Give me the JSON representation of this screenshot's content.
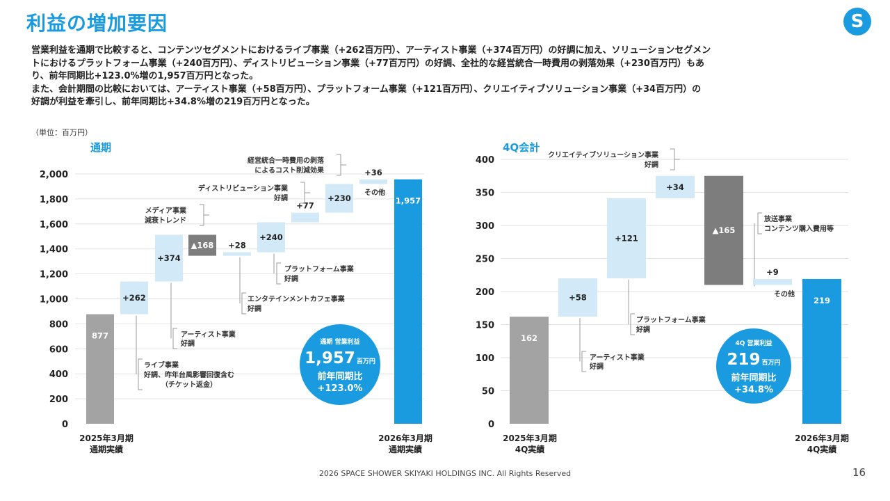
{
  "title": "利益の増加要因",
  "logo_letter": "S",
  "summary": {
    "line1": "営業利益を通期で比較すると、コンテンツセグメントにおけるライブ事業（+262百万円）、アーティスト事業（+374百万円）の好調に加え、ソリューションセグメン",
    "line2": "トにおけるプラットフォーム事業（+240百万円）、ディストリビューション事業（+77百万円）の好調、全社的な経営統合一時費用の剥落効果（+230百万円）もあ",
    "line3": "り、前年同期比+123.0%増の1,957百万円となった。",
    "line4": "また、会計期間の比較においては、アーティスト事業（+58百万円）、プラットフォーム事業（+121百万円）、クリエイティブソリューション事業（+34百万円）の",
    "line5": "好調が利益を牽引し、前年同期比+34.8%増の219百万円となった。"
  },
  "unit_label": "（単位：百万円）",
  "colors": {
    "accent": "#1a9be0",
    "start_bar": "#a3a3a3",
    "increase_bar": "#d2e9f8",
    "decrease_bar": "#7d7d7d",
    "end_bar": "#1a9be0",
    "badge": "#1a9be0",
    "grid": "#e2e2e2",
    "bracket": "#9a9a9a"
  },
  "chart_data": [
    {
      "type": "waterfall",
      "title": "通期",
      "ylim": [
        0,
        2000
      ],
      "yticks": [
        0,
        200,
        400,
        600,
        800,
        1000,
        1200,
        1400,
        1600,
        1800,
        2000
      ],
      "ytick_labels": [
        "0",
        "200",
        "400",
        "600",
        "800",
        "1,000",
        "1,200",
        "1,400",
        "1,600",
        "1,800",
        "2,000"
      ],
      "grid": true,
      "bars": [
        {
          "kind": "start",
          "value": 877,
          "label": "877",
          "xlabel": [
            "2025年3月期",
            "通期実績"
          ]
        },
        {
          "kind": "increase",
          "value": 262,
          "label": "+262",
          "note": [
            "ライブ事業",
            "好調、昨年台風影響回復含む",
            "（チケット返金）"
          ]
        },
        {
          "kind": "increase",
          "value": 374,
          "label": "+374",
          "note": [
            "アーティスト事業",
            "好調"
          ]
        },
        {
          "kind": "decrease",
          "value": -168,
          "label": "▲168",
          "note": [
            "メディア事業",
            "減衰トレンド"
          ]
        },
        {
          "kind": "increase",
          "value": 28,
          "label": "+28",
          "note": [
            "エンタテインメントカフェ事業",
            "好調"
          ]
        },
        {
          "kind": "increase",
          "value": 240,
          "label": "+240",
          "note": [
            "プラットフォーム事業",
            "好調"
          ]
        },
        {
          "kind": "increase",
          "value": 77,
          "label": "+77",
          "note": [
            "ディストリビューション事業",
            "好調"
          ]
        },
        {
          "kind": "increase",
          "value": 230,
          "label": "+230",
          "note": [
            "経営統合一時費用の剥落",
            "によるコスト削減効果"
          ]
        },
        {
          "kind": "increase",
          "value": 36,
          "label": "+36",
          "note": [
            "その他"
          ]
        },
        {
          "kind": "end",
          "value": 1957,
          "label": "1,957",
          "xlabel": [
            "2026年3月期",
            "通期実績"
          ]
        }
      ],
      "badge": {
        "title": "通期 営業利益",
        "value": "1,957",
        "unit": "百万円",
        "line3": "前年同期比",
        "line4": "+123.0%"
      }
    },
    {
      "type": "waterfall",
      "title": "4Q会計",
      "ylim": [
        0,
        400
      ],
      "yticks": [
        0,
        50,
        100,
        150,
        200,
        250,
        300,
        350,
        400
      ],
      "ytick_labels": [
        "0",
        "50",
        "100",
        "150",
        "200",
        "250",
        "300",
        "350",
        "400"
      ],
      "grid": true,
      "bars": [
        {
          "kind": "start",
          "value": 162,
          "label": "162",
          "xlabel": [
            "2025年3月期",
            "4Q実績"
          ]
        },
        {
          "kind": "increase",
          "value": 58,
          "label": "+58",
          "note": [
            "アーティスト事業",
            "好調"
          ]
        },
        {
          "kind": "increase",
          "value": 121,
          "label": "+121",
          "note": [
            "プラットフォーム事業",
            "好調"
          ]
        },
        {
          "kind": "increase",
          "value": 34,
          "label": "+34",
          "note": [
            "クリエイティブソリューション事業",
            "好調"
          ]
        },
        {
          "kind": "decrease",
          "value": -165,
          "label": "▲165",
          "note": [
            "放送事業",
            "コンテンツ購入費用等"
          ]
        },
        {
          "kind": "increase",
          "value": 9,
          "label": "+9",
          "note": [
            "その他"
          ]
        },
        {
          "kind": "end",
          "value": 219,
          "label": "219",
          "xlabel": [
            "2026年3月期",
            "4Q実績"
          ]
        }
      ],
      "badge": {
        "title": "4Q 営業利益",
        "value": "219",
        "unit": "百万円",
        "line3": "前年同期比",
        "line4": "+34.8%"
      }
    }
  ],
  "footer": "2026 SPACE SHOWER SKIYAKI HOLDINGS INC. All Rights Reserved",
  "page_number": "16"
}
